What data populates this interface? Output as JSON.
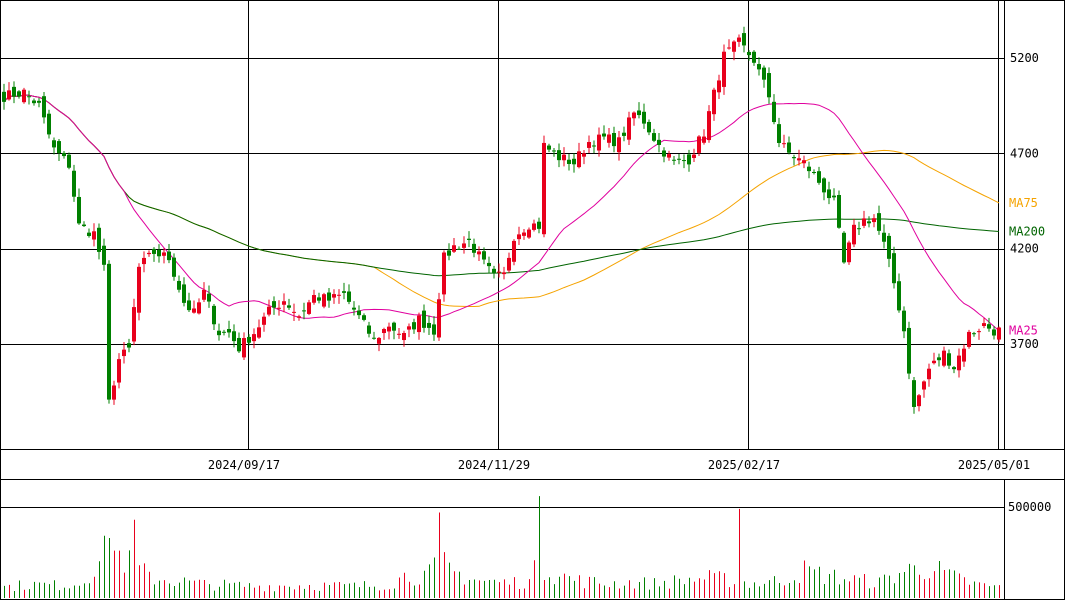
{
  "chart_data": {
    "type": "candlestick",
    "price_axis": {
      "ticks": [
        {
          "value": 5200,
          "label": "5200"
        },
        {
          "value": 4700,
          "label": "4700"
        },
        {
          "value": 4200,
          "label": "4200"
        },
        {
          "value": 3700,
          "label": "3700"
        }
      ],
      "range": [
        3180,
        5480
      ]
    },
    "volume_axis": {
      "ticks": [
        {
          "value": 500000,
          "label": "500000"
        }
      ],
      "range": [
        0,
        600000
      ]
    },
    "date_labels": [
      {
        "index": 49,
        "label": "2024/09/17"
      },
      {
        "index": 99,
        "label": "2024/11/29"
      },
      {
        "index": 149,
        "label": "2025/02/17"
      },
      {
        "index": 199,
        "label": "2025/05/01"
      }
    ],
    "ma_legend": [
      {
        "name": "MA75",
        "color": "#f5a300",
        "last_value": 4440
      },
      {
        "name": "MA200",
        "color": "#006400",
        "last_value": 4290
      },
      {
        "name": "MA25",
        "color": "#e0009e",
        "last_value": 3770
      }
    ],
    "colors": {
      "up": "#e8001c",
      "down": "#008000",
      "grid": "#000000"
    },
    "close_keypoints": [
      [
        0,
        5000
      ],
      [
        4,
        5020
      ],
      [
        7,
        4950
      ],
      [
        10,
        4720
      ],
      [
        13,
        4640
      ],
      [
        15,
        4320
      ],
      [
        18,
        4280
      ],
      [
        20,
        4090
      ],
      [
        21,
        3390
      ],
      [
        23,
        3620
      ],
      [
        25,
        3670
      ],
      [
        27,
        4100
      ],
      [
        30,
        4180
      ],
      [
        33,
        4150
      ],
      [
        36,
        3920
      ],
      [
        38,
        3860
      ],
      [
        40,
        3970
      ],
      [
        43,
        3760
      ],
      [
        45,
        3760
      ],
      [
        47,
        3680
      ],
      [
        50,
        3760
      ],
      [
        53,
        3870
      ],
      [
        56,
        3930
      ],
      [
        59,
        3850
      ],
      [
        62,
        3950
      ],
      [
        65,
        3930
      ],
      [
        68,
        3960
      ],
      [
        71,
        3840
      ],
      [
        74,
        3720
      ],
      [
        77,
        3800
      ],
      [
        80,
        3740
      ],
      [
        83,
        3830
      ],
      [
        86,
        3770
      ],
      [
        88,
        4150
      ],
      [
        90,
        4210
      ],
      [
        93,
        4240
      ],
      [
        96,
        4120
      ],
      [
        98,
        4050
      ],
      [
        100,
        4060
      ],
      [
        102,
        4270
      ],
      [
        105,
        4330
      ],
      [
        107,
        4320
      ],
      [
        108,
        4740
      ],
      [
        111,
        4680
      ],
      [
        114,
        4650
      ],
      [
        117,
        4760
      ],
      [
        120,
        4780
      ],
      [
        123,
        4760
      ],
      [
        126,
        4910
      ],
      [
        128,
        4870
      ],
      [
        131,
        4740
      ],
      [
        134,
        4650
      ],
      [
        137,
        4670
      ],
      [
        140,
        4810
      ],
      [
        144,
        5210
      ],
      [
        147,
        5280
      ],
      [
        150,
        5190
      ],
      [
        153,
        5000
      ],
      [
        155,
        4760
      ],
      [
        157,
        4700
      ],
      [
        160,
        4650
      ],
      [
        163,
        4550
      ],
      [
        166,
        4440
      ],
      [
        168,
        4120
      ],
      [
        170,
        4300
      ],
      [
        172,
        4350
      ],
      [
        174,
        4360
      ],
      [
        176,
        4220
      ],
      [
        178,
        4020
      ],
      [
        180,
        3770
      ],
      [
        182,
        3360
      ],
      [
        185,
        3570
      ],
      [
        188,
        3650
      ],
      [
        190,
        3580
      ],
      [
        193,
        3750
      ],
      [
        196,
        3800
      ],
      [
        198,
        3770
      ]
    ],
    "volume_keypoints": [
      [
        0,
        60000
      ],
      [
        5,
        75000
      ],
      [
        10,
        70000
      ],
      [
        15,
        80000
      ],
      [
        19,
        200000
      ],
      [
        21,
        280000
      ],
      [
        24,
        210000
      ],
      [
        27,
        150000
      ],
      [
        30,
        110000
      ],
      [
        40,
        75000
      ],
      [
        50,
        65000
      ],
      [
        60,
        70000
      ],
      [
        70,
        65000
      ],
      [
        77,
        75000
      ],
      [
        80,
        120000
      ],
      [
        85,
        130000
      ],
      [
        87,
        200000
      ],
      [
        90,
        140000
      ],
      [
        95,
        95000
      ],
      [
        100,
        85000
      ],
      [
        105,
        90000
      ],
      [
        107,
        200000
      ],
      [
        110,
        130000
      ],
      [
        115,
        95000
      ],
      [
        120,
        80000
      ],
      [
        125,
        85000
      ],
      [
        130,
        80000
      ],
      [
        135,
        95000
      ],
      [
        140,
        110000
      ],
      [
        145,
        100000
      ],
      [
        150,
        80000
      ],
      [
        155,
        95000
      ],
      [
        160,
        150000
      ],
      [
        165,
        120000
      ],
      [
        170,
        100000
      ],
      [
        175,
        85000
      ],
      [
        180,
        150000
      ],
      [
        185,
        170000
      ],
      [
        190,
        110000
      ],
      [
        195,
        70000
      ],
      [
        199,
        60000
      ]
    ],
    "volume_spikes": [
      [
        21,
        330000
      ],
      [
        26,
        430000
      ],
      [
        87,
        470000
      ],
      [
        107,
        560000
      ],
      [
        147,
        490000
      ]
    ]
  }
}
